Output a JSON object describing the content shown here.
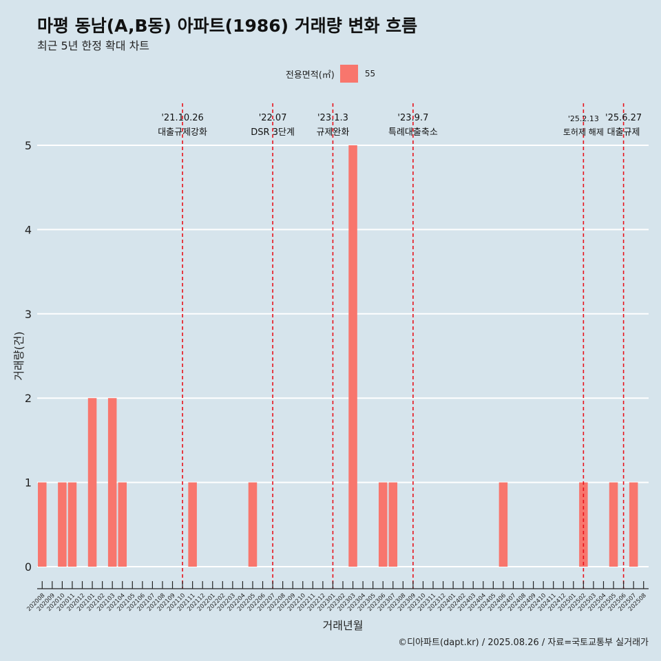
{
  "header": {
    "title": "마평 동남(A,B동) 아파트(1986) 거래량 변화 흐름",
    "subtitle": "최근 5년 한정 확대 차트"
  },
  "legend": {
    "title": "전용면적(㎡)",
    "entries": [
      {
        "label": "55",
        "color": "#f8766d"
      }
    ]
  },
  "caption": "©디아파트(dapt.kr) / 2025.08.26 / 자료=국토교통부 실거래가",
  "colors": {
    "background": "#d6e4ec",
    "bar": "#f8766d",
    "event_line": "#e8101a",
    "grid": "#ffffff"
  },
  "chart_data": {
    "type": "bar",
    "xlabel": "거래년월",
    "ylabel": "거래량(건)",
    "ylim": [
      0,
      5
    ],
    "yticks": [
      0,
      1,
      2,
      3,
      4,
      5
    ],
    "grid": true,
    "legend_position": "top",
    "categories": [
      "202008",
      "202009",
      "202010",
      "202011",
      "202012",
      "202101",
      "202102",
      "202103",
      "202104",
      "202105",
      "202106",
      "202107",
      "202108",
      "202109",
      "202110",
      "202111",
      "202112",
      "202201",
      "202202",
      "202203",
      "202204",
      "202205",
      "202206",
      "202207",
      "202208",
      "202209",
      "202210",
      "202211",
      "202212",
      "202301",
      "202302",
      "202303",
      "202304",
      "202305",
      "202306",
      "202307",
      "202308",
      "202309",
      "202310",
      "202311",
      "202312",
      "202401",
      "202402",
      "202403",
      "202404",
      "202405",
      "202406",
      "202407",
      "202408",
      "202409",
      "202410",
      "202411",
      "202412",
      "202501",
      "202502",
      "202503",
      "202504",
      "202505",
      "202506",
      "202507",
      "202508"
    ],
    "series": [
      {
        "name": "55",
        "values": [
          1,
          0,
          1,
          1,
          0,
          2,
          0,
          2,
          1,
          0,
          0,
          0,
          0,
          0,
          0,
          1,
          0,
          0,
          0,
          0,
          0,
          1,
          0,
          0,
          0,
          0,
          0,
          0,
          0,
          0,
          0,
          5,
          0,
          0,
          1,
          1,
          0,
          0,
          0,
          0,
          0,
          0,
          0,
          0,
          0,
          0,
          1,
          0,
          0,
          0,
          0,
          0,
          0,
          0,
          1,
          0,
          0,
          1,
          0,
          1,
          0
        ]
      }
    ],
    "events": [
      {
        "date": "'21.10.26",
        "label": "대출규제강화",
        "x": "202110"
      },
      {
        "date": "'22.07",
        "label": "DSR 3단계",
        "x": "202207"
      },
      {
        "date": "'23.1.3",
        "label": "규제완화",
        "x": "202301"
      },
      {
        "date": "'23.9.7",
        "label": "특례대출축소",
        "x": "202309"
      },
      {
        "date": "'25.2.13",
        "label": "토허제 해제",
        "x": "202502"
      },
      {
        "date": "'25.6.27",
        "label": "대출규제",
        "x": "202506"
      }
    ]
  }
}
